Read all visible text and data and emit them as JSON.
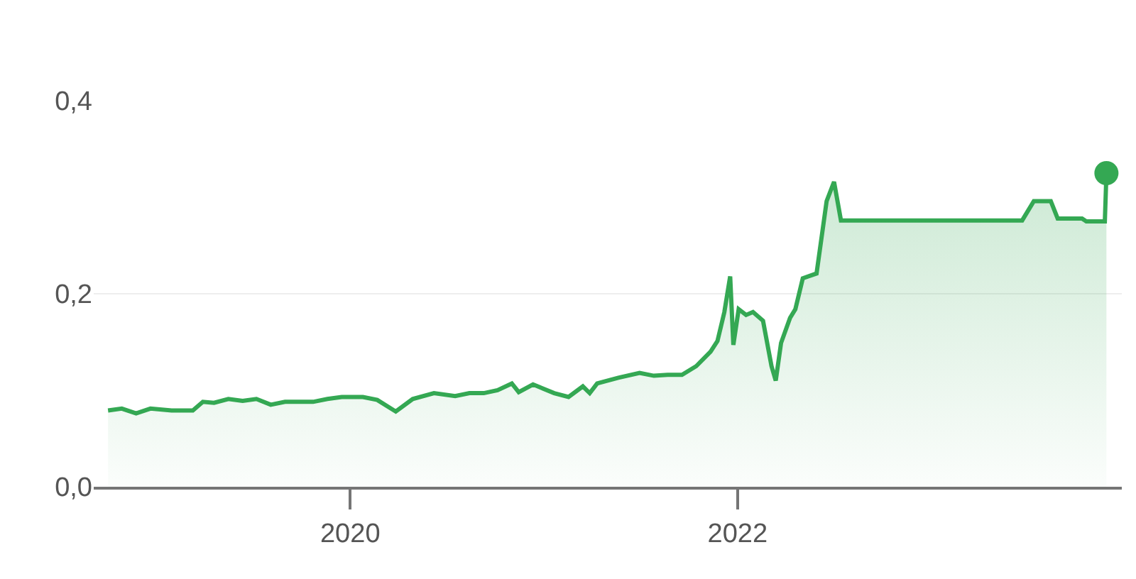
{
  "chart_data": {
    "type": "area",
    "x": [
      "2018-10-01",
      "2018-10-27",
      "2018-11-23",
      "2018-12-20",
      "2019-01-29",
      "2019-03-10",
      "2019-03-29",
      "2019-04-19",
      "2019-05-16",
      "2019-06-12",
      "2019-07-08",
      "2019-08-04",
      "2019-08-31",
      "2019-09-27",
      "2019-10-23",
      "2019-11-19",
      "2019-12-16",
      "2020-01-25",
      "2020-02-21",
      "2020-03-27",
      "2020-04-28",
      "2020-06-07",
      "2020-07-17",
      "2020-08-13",
      "2020-09-09",
      "2020-10-05",
      "2020-11-01",
      "2020-11-14",
      "2020-12-11",
      "2021-01-20",
      "2021-02-16",
      "2021-03-15",
      "2021-03-28",
      "2021-04-11",
      "2021-05-21",
      "2021-06-30",
      "2021-07-27",
      "2021-08-22",
      "2021-09-18",
      "2021-10-15",
      "2021-11-11",
      "2021-11-24",
      "2021-12-07",
      "2021-12-18",
      "2021-12-24",
      "2022-01-03",
      "2022-01-17",
      "2022-01-30",
      "2022-02-18",
      "2022-03-06",
      "2022-03-14",
      "2022-03-24",
      "2022-04-10",
      "2022-04-20",
      "2022-05-04",
      "2022-05-30",
      "2022-06-18",
      "2022-07-02",
      "2022-07-15",
      "2023-06-22",
      "2023-07-14",
      "2023-08-15",
      "2023-08-28",
      "2023-10-13",
      "2023-10-21",
      "2023-11-25",
      "2023-11-28"
    ],
    "series": [
      {
        "color": "#34a853",
        "marker": "none",
        "values": [
          0.079,
          0.081,
          0.076,
          0.081,
          0.079,
          0.079,
          0.088,
          0.087,
          0.091,
          0.089,
          0.091,
          0.085,
          0.088,
          0.088,
          0.088,
          0.091,
          0.093,
          0.093,
          0.09,
          0.078,
          0.091,
          0.097,
          0.094,
          0.097,
          0.097,
          0.1,
          0.107,
          0.098,
          0.106,
          0.097,
          0.093,
          0.104,
          0.097,
          0.107,
          0.113,
          0.118,
          0.115,
          0.116,
          0.116,
          0.125,
          0.14,
          0.151,
          0.181,
          0.218,
          0.147,
          0.184,
          0.178,
          0.181,
          0.172,
          0.125,
          0.11,
          0.149,
          0.175,
          0.184,
          0.216,
          0.221,
          0.296,
          0.316,
          0.276,
          0.276,
          0.296,
          0.296,
          0.278,
          0.278,
          0.275,
          0.275,
          0.325
        ]
      },
      {
        "type": "scatter",
        "color": "#34a853",
        "marker": "circle",
        "x": [
          "2023-11-28"
        ],
        "values": [
          0.325
        ]
      }
    ],
    "xlim": [
      "2018-09-04",
      "2023-12-27"
    ],
    "xticks": [
      {
        "value": "2020-01-01",
        "label": "2020"
      },
      {
        "value": "2022-01-01",
        "label": "2022"
      }
    ],
    "ylim": [
      0,
      0.4
    ],
    "yticks": [
      {
        "value": 0,
        "label": "0,0"
      },
      {
        "value": 0.2,
        "label": "0,2"
      },
      {
        "value": 0.4,
        "label": "0,4"
      }
    ],
    "grid": "y"
  }
}
